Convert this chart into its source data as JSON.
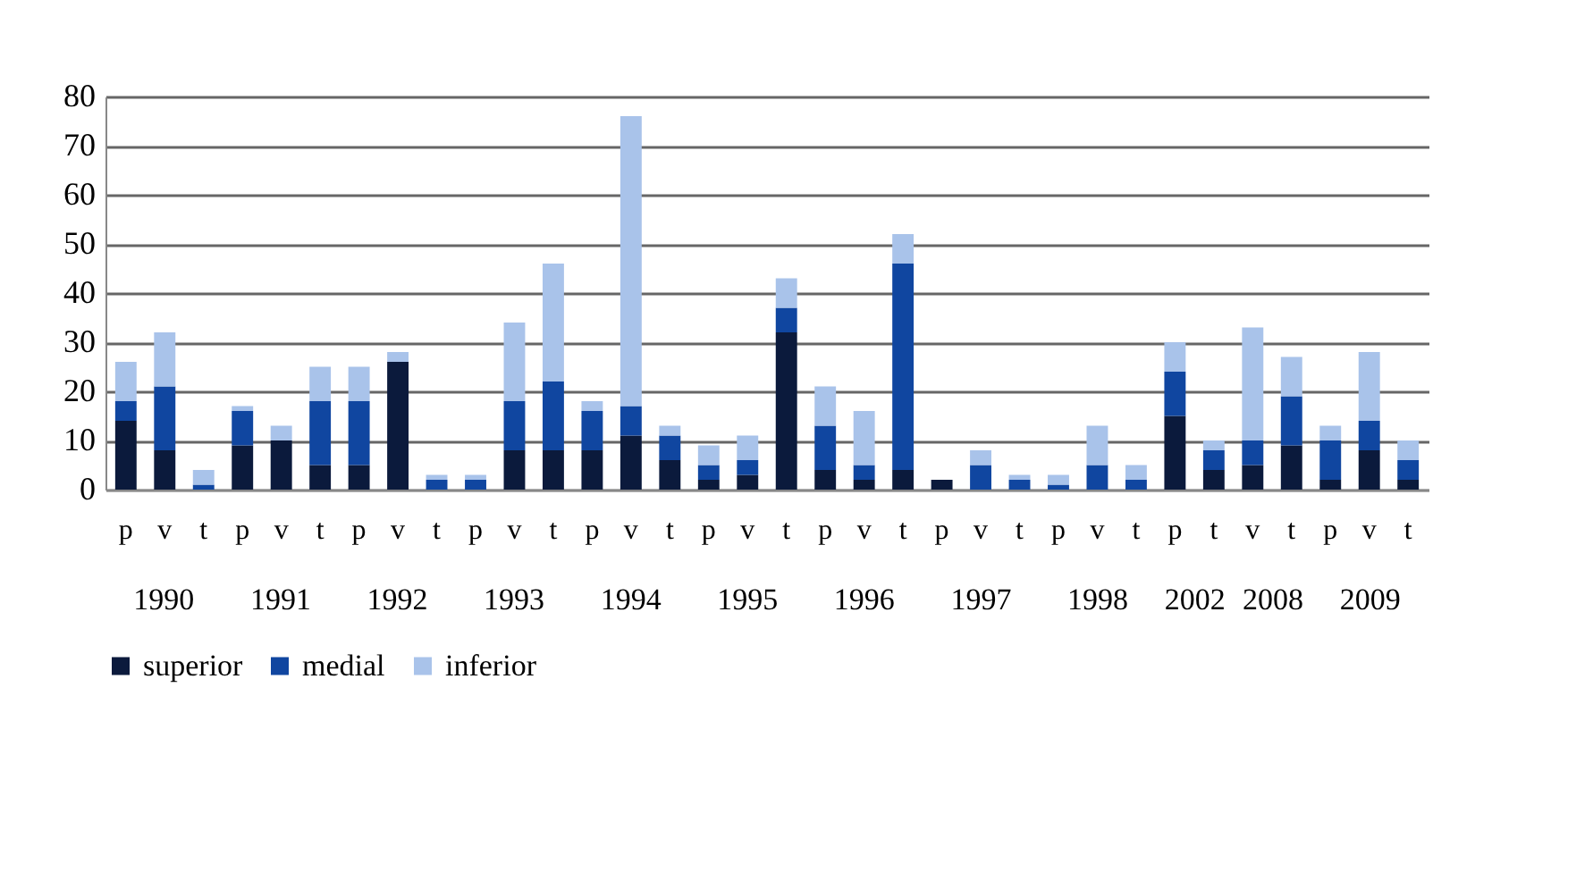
{
  "chart_data": {
    "type": "bar",
    "stacked": true,
    "categories": [
      "p",
      "v",
      "t",
      "p",
      "v",
      "t",
      "p",
      "v",
      "t",
      "p",
      "v",
      "t",
      "p",
      "v",
      "t",
      "p",
      "v",
      "t",
      "p",
      "v",
      "t",
      "p",
      "v",
      "t",
      "p",
      "v",
      "t",
      "p",
      "t",
      "v",
      "t",
      "p",
      "v",
      "t"
    ],
    "ylim": [
      0,
      80
    ],
    "yticks": [
      0,
      10,
      20,
      30,
      40,
      50,
      60,
      70,
      80
    ],
    "grid": "y",
    "legend": "bottom",
    "annotations": [
      "1990",
      "1991",
      "1992",
      "1993",
      "1994",
      "1995",
      "1996",
      "1997",
      "1998",
      "2002",
      "2008",
      "2009"
    ],
    "series": [
      {
        "name": "superior",
        "color": "#0b1a3c",
        "values": [
          14,
          8,
          0,
          9,
          10,
          5,
          5,
          26,
          0,
          0,
          8,
          8,
          8,
          11,
          6,
          2,
          3,
          32,
          4,
          2,
          4,
          2,
          0,
          0,
          0,
          0,
          0,
          15,
          4,
          5,
          9,
          2,
          8,
          2
        ]
      },
      {
        "name": "medial",
        "color": "#1046a0",
        "values": [
          4,
          13,
          1,
          7,
          0,
          13,
          13,
          0,
          2,
          2,
          10,
          14,
          8,
          6,
          5,
          3,
          3,
          5,
          9,
          3,
          42,
          0,
          5,
          2,
          1,
          5,
          2,
          9,
          4,
          5,
          10,
          8,
          6,
          4
        ]
      },
      {
        "name": "inferior",
        "color": "#a9c3ea",
        "values": [
          8,
          11,
          3,
          1,
          3,
          7,
          7,
          2,
          1,
          1,
          16,
          24,
          2,
          59,
          2,
          4,
          5,
          6,
          8,
          11,
          6,
          0,
          3,
          1,
          2,
          8,
          3,
          6,
          2,
          23,
          8,
          3,
          14,
          4
        ]
      }
    ]
  }
}
